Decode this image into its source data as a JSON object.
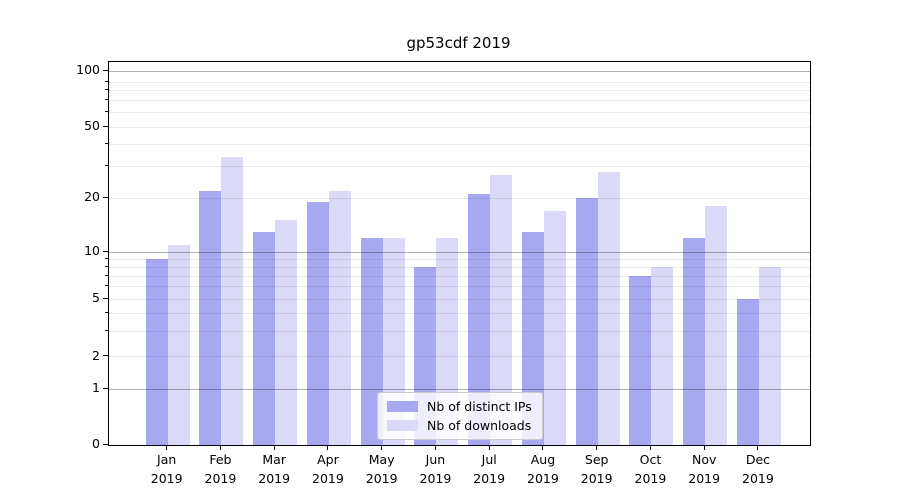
{
  "chart_data": {
    "type": "bar",
    "title": "gp53cdf 2019",
    "categories": [
      "Jan",
      "Feb",
      "Mar",
      "Apr",
      "May",
      "Jun",
      "Jul",
      "Aug",
      "Sep",
      "Oct",
      "Nov",
      "Dec"
    ],
    "year_line": "2019",
    "series": [
      {
        "name": "Nb of distinct IPs",
        "color": "#a8a8f0",
        "values": [
          9,
          22,
          13,
          19,
          12,
          8,
          21,
          13,
          20,
          7,
          12,
          5
        ]
      },
      {
        "name": "Nb of downloads",
        "color": "#dadaf8",
        "values": [
          11,
          34,
          15,
          22,
          12,
          12,
          27,
          17,
          28,
          8,
          18,
          8
        ]
      }
    ],
    "yscale": "symlog",
    "y_tick_labels": [
      "0",
      "1",
      "2",
      "5",
      "10",
      "20",
      "50",
      "100"
    ],
    "y_major_gridlines": [
      1,
      10,
      100
    ],
    "y_minor_gridlines": [
      2,
      3,
      4,
      5,
      6,
      7,
      8,
      9,
      20,
      30,
      40,
      50,
      60,
      70,
      80,
      90
    ],
    "ylim": [
      0,
      115
    ],
    "grid": "horizontal",
    "legend_position": "lower center",
    "xlabel": "",
    "ylabel": ""
  },
  "legend": {
    "items": [
      {
        "label": "Nb of distinct IPs",
        "color": "#a8a8f0"
      },
      {
        "label": "Nb of downloads",
        "color": "#dadaf8"
      }
    ]
  }
}
